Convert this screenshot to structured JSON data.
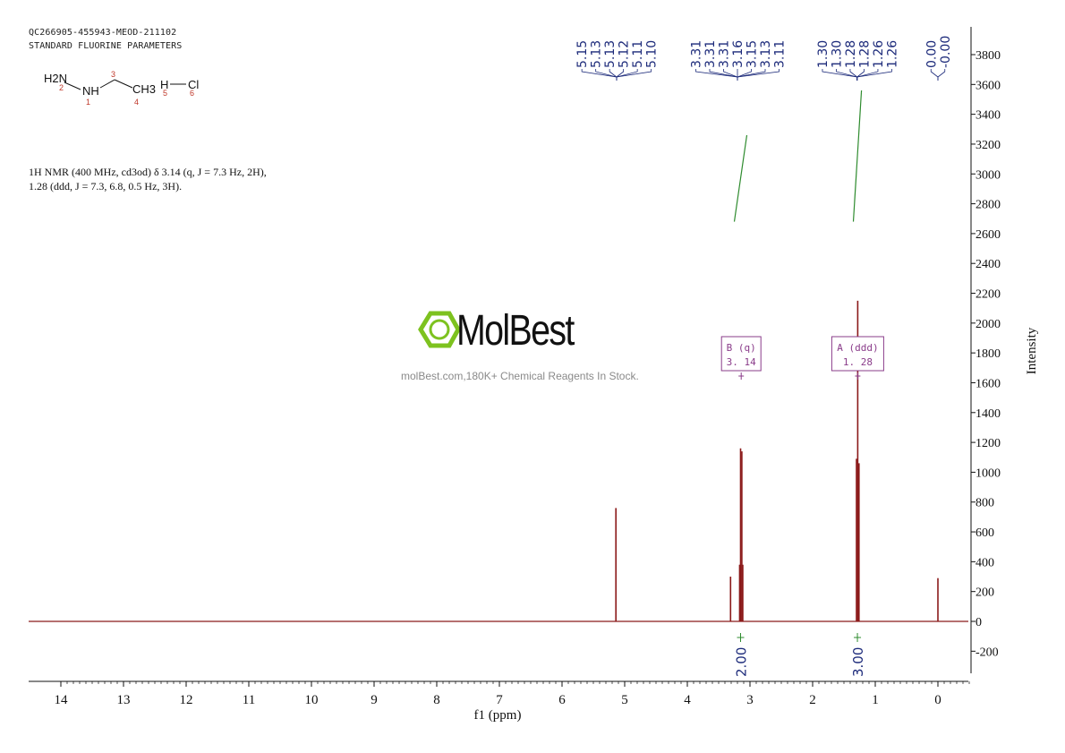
{
  "header": {
    "sample_id": "QC266905-455943-MEOD-211102",
    "parameters": "STANDARD FLUORINE PARAMETERS"
  },
  "molecule": {
    "labels": {
      "h2n": "H2N",
      "nh": "NH",
      "ch3": "CH3",
      "h": "H",
      "cl": "Cl"
    },
    "atom_numbers": [
      "1",
      "2",
      "3",
      "4",
      "5",
      "6"
    ]
  },
  "nmr_description": {
    "line1": "1H NMR (400 MHz, cd3od) δ 3.14 (q, J = 7.3 Hz, 2H),",
    "line2": "1.28 (ddd, J = 7.3, 6.8, 0.5 Hz, 3H)."
  },
  "watermark": {
    "brand": "MolBest",
    "tagline": "molBest.com,180K+ Chemical Reagents In Stock."
  },
  "colors": {
    "spectrum": "#8b1a1a",
    "peak_label": "#1c2a7a",
    "integral": "#2e8b2e",
    "multiplet_box": "#8a3c8a",
    "brand_green": "#7dc21f"
  },
  "chart_data": {
    "type": "line",
    "xlabel": "f1 (ppm)",
    "ylabel": "Intensity",
    "xlim": [
      14.5,
      -0.5
    ],
    "ylim": [
      -400,
      3900
    ],
    "x_ticks": [
      14,
      13,
      12,
      11,
      10,
      9,
      8,
      7,
      6,
      5,
      4,
      3,
      2,
      1,
      0
    ],
    "y_ticks": [
      3800,
      3600,
      3400,
      3200,
      3000,
      2800,
      2600,
      2400,
      2200,
      2000,
      1800,
      1600,
      1400,
      1200,
      1000,
      800,
      600,
      400,
      200,
      0,
      -200
    ],
    "peaks": [
      {
        "ppm": 5.14,
        "height": 760
      },
      {
        "ppm": 3.31,
        "height": 300
      },
      {
        "ppm": 3.165,
        "height": 380
      },
      {
        "ppm": 3.15,
        "height": 1160
      },
      {
        "ppm": 3.13,
        "height": 1140
      },
      {
        "ppm": 3.115,
        "height": 380
      },
      {
        "ppm": 1.3,
        "height": 1090
      },
      {
        "ppm": 1.28,
        "height": 2150
      },
      {
        "ppm": 1.26,
        "height": 1060
      },
      {
        "ppm": 0.0,
        "height": 290
      }
    ],
    "peak_label_groups": [
      {
        "labels": [
          "5.15",
          "5.13",
          "5.13",
          "5.12",
          "5.11",
          "5.10"
        ],
        "target_ppm": 5.13
      },
      {
        "labels": [
          "3.31",
          "3.31",
          "3.31",
          "3.16",
          "3.15",
          "3.13",
          "3.11"
        ],
        "target_ppm": 3.2
      },
      {
        "labels": [
          "1.30",
          "1.30",
          "1.28",
          "1.28",
          "1.26",
          "1.26"
        ],
        "target_ppm": 1.29
      },
      {
        "labels": [
          "0.00",
          "-0.00"
        ],
        "target_ppm": 0.0
      }
    ],
    "integrals": [
      {
        "ppm_from": 3.25,
        "ppm_to": 3.05,
        "value": "2.00",
        "curve_start": 2680,
        "curve_end": 3260
      },
      {
        "ppm_from": 1.35,
        "ppm_to": 1.22,
        "value": "3.00",
        "curve_start": 2680,
        "curve_end": 3560
      }
    ],
    "multiplets": [
      {
        "name": "B (q)",
        "shift": "3. 14",
        "ppm": 3.14
      },
      {
        "name": "A (ddd)",
        "shift": "1. 28",
        "ppm": 1.28
      }
    ]
  }
}
